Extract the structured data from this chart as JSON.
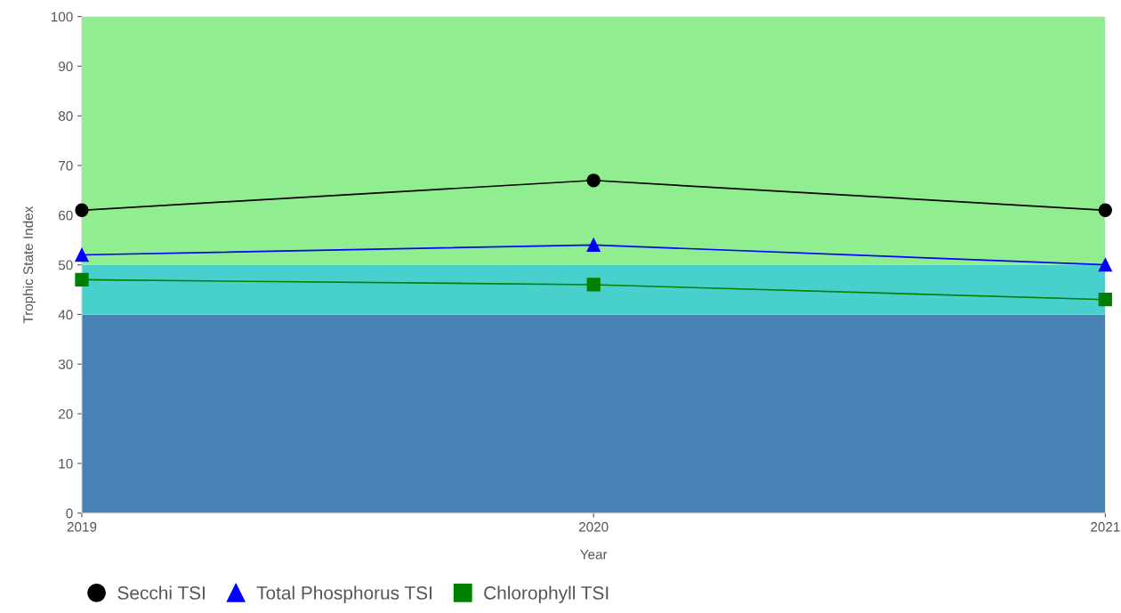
{
  "chart_data": {
    "type": "line",
    "xlabel": "Year",
    "ylabel": "Trophic State Index",
    "x": [
      2019,
      2020,
      2021
    ],
    "xlim": [
      2019,
      2021
    ],
    "xticks": [
      2019,
      2020,
      2021
    ],
    "ylim": [
      0,
      100
    ],
    "yticks": [
      0,
      10,
      20,
      30,
      40,
      50,
      60,
      70,
      80,
      90,
      100
    ],
    "bands": [
      {
        "axis": "y",
        "from": 0,
        "to": 40,
        "color": "#4682b4"
      },
      {
        "axis": "y",
        "from": 40,
        "to": 50,
        "color": "#48d1cc"
      },
      {
        "axis": "y",
        "from": 50,
        "to": 100,
        "color": "#90ee90"
      }
    ],
    "series": [
      {
        "name": "Secchi TSI",
        "color": "#000000",
        "marker": "circle",
        "values": [
          61,
          67,
          61
        ]
      },
      {
        "name": "Total Phosphorus TSI",
        "color": "#0000ff",
        "marker": "triangle",
        "values": [
          52,
          54,
          50
        ]
      },
      {
        "name": "Chlorophyll TSI",
        "color": "#008000",
        "marker": "square",
        "values": [
          47,
          46,
          43
        ]
      }
    ],
    "legend": "bottom left",
    "grid": false,
    "line_style": "solid"
  }
}
